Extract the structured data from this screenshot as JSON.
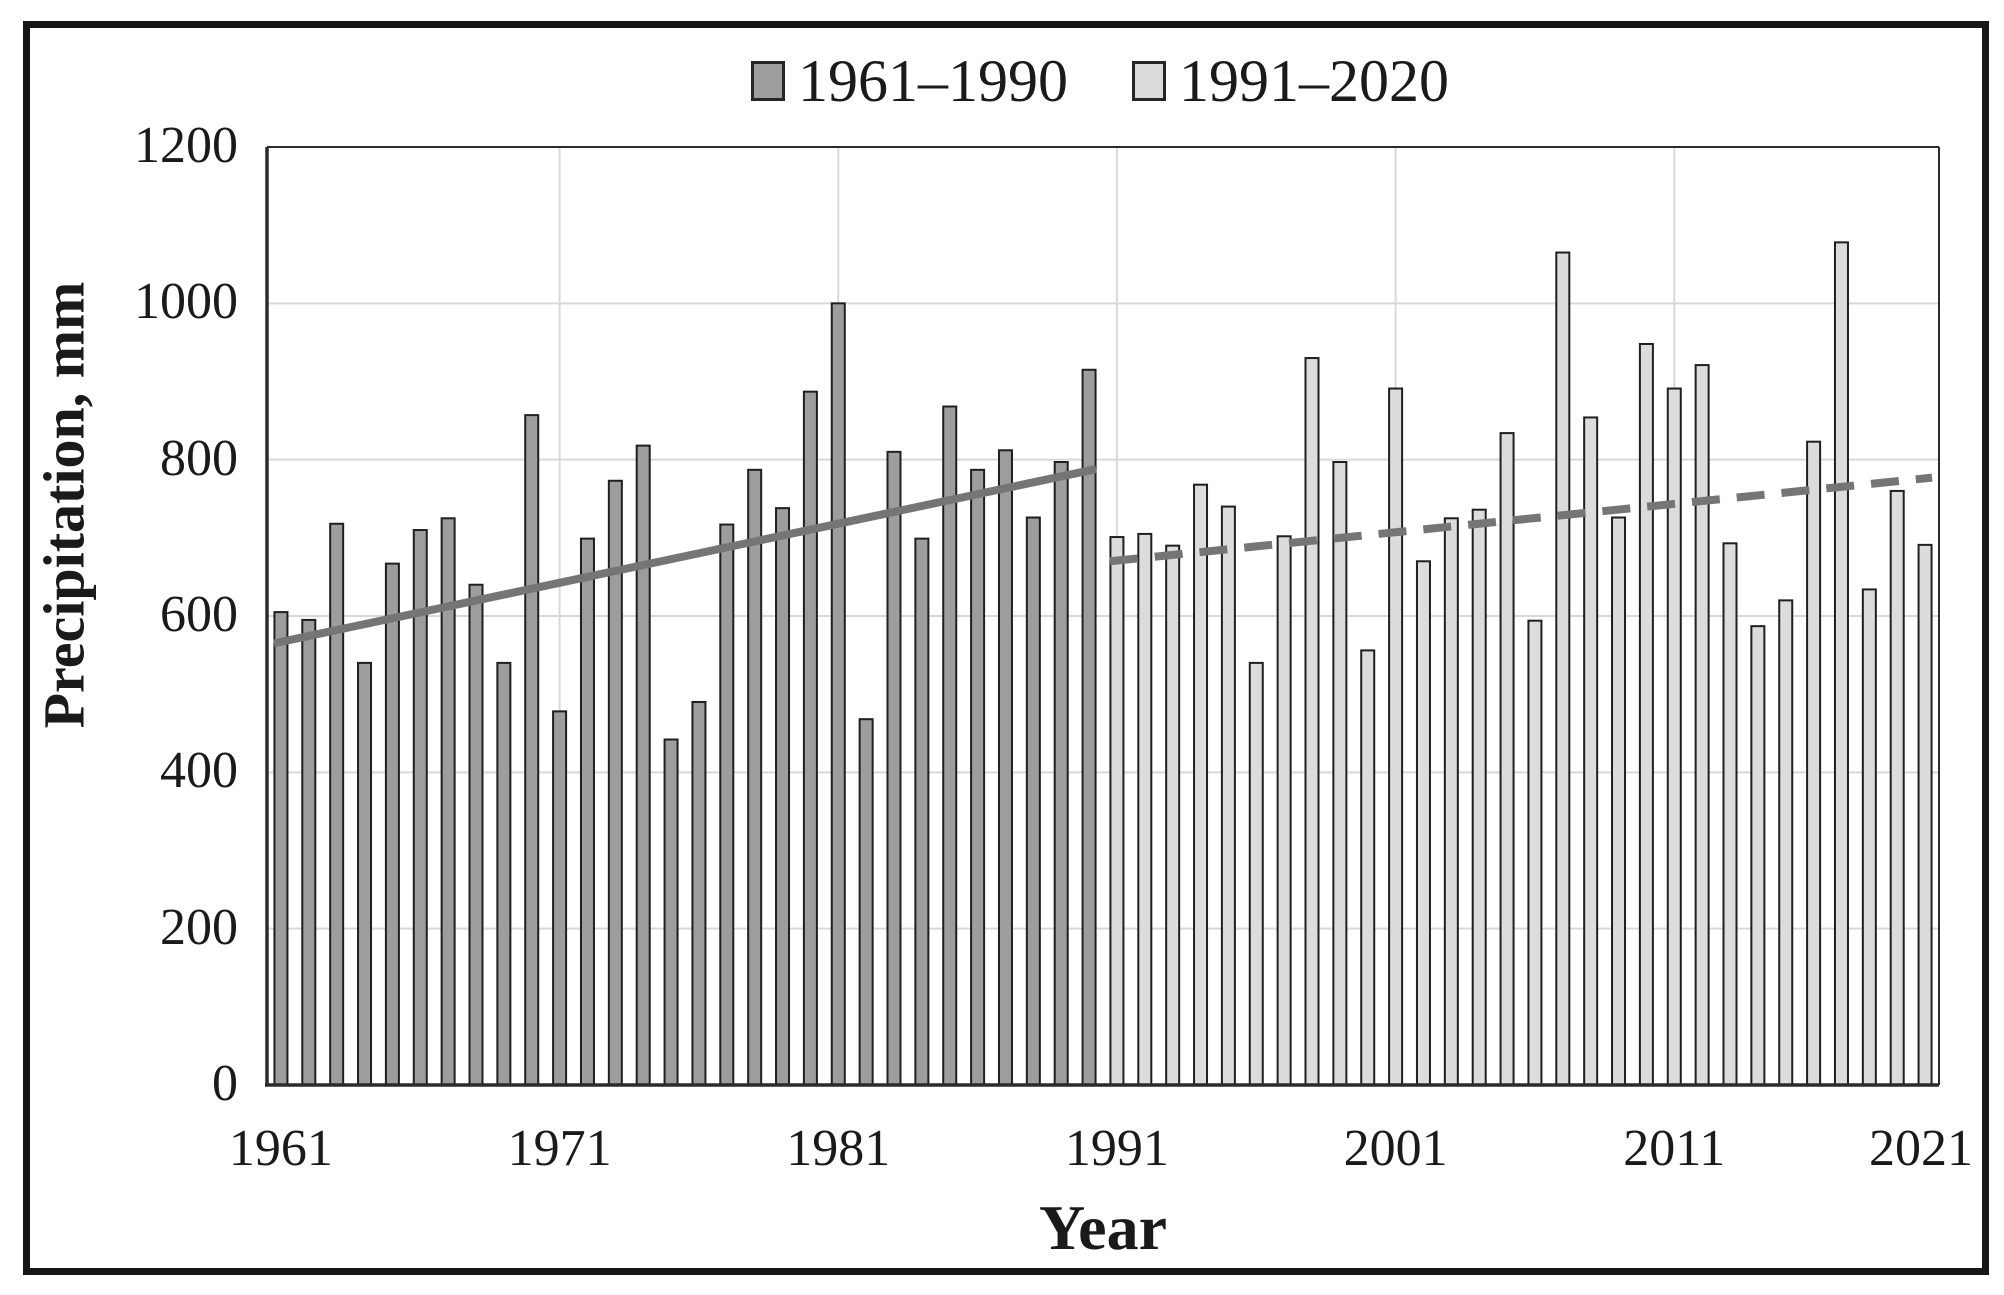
{
  "figure": {
    "background": "#ffffff",
    "frame_color": "#161616"
  },
  "legend": {
    "items": [
      {
        "label": "1961–1990",
        "swatch_color": "#9d9d9d"
      },
      {
        "label": "1991–2020",
        "swatch_color": "#dcdcdc"
      }
    ]
  },
  "chart_data": {
    "type": "bar",
    "title": "",
    "xlabel": "Year",
    "ylabel": "Precipitation, mm",
    "ylim": [
      0,
      1200
    ],
    "yticks": [
      0,
      200,
      400,
      600,
      800,
      1000,
      1200
    ],
    "xticks": [
      1961,
      1971,
      1981,
      1991,
      2001,
      2011,
      2021
    ],
    "x_gridlines": [
      1971,
      1981,
      1991,
      2001,
      2011
    ],
    "grid": true,
    "legend_position": "top-center",
    "bar_outline": "#1f1f1f",
    "gridline_color": "#d9d9d9",
    "axis_color": "#1a1a1a",
    "series": [
      {
        "name": "1961–1990",
        "color": "#9d9d9d",
        "years": [
          1961,
          1962,
          1963,
          1964,
          1965,
          1966,
          1967,
          1968,
          1969,
          1970,
          1971,
          1972,
          1973,
          1974,
          1975,
          1976,
          1977,
          1978,
          1979,
          1980,
          1981,
          1982,
          1983,
          1984,
          1985,
          1986,
          1987,
          1988,
          1989,
          1990
        ],
        "values": [
          605,
          595,
          718,
          540,
          667,
          710,
          725,
          640,
          540,
          857,
          478,
          699,
          773,
          818,
          442,
          490,
          717,
          787,
          738,
          887,
          1000,
          468,
          810,
          699,
          868,
          787,
          812,
          726,
          797,
          915
        ]
      },
      {
        "name": "1991–2020",
        "color": "#dcdcdc",
        "years": [
          1991,
          1992,
          1993,
          1994,
          1995,
          1996,
          1997,
          1998,
          1999,
          2000,
          2001,
          2002,
          2003,
          2004,
          2005,
          2006,
          2007,
          2008,
          2009,
          2010,
          2011,
          2012,
          2013,
          2014,
          2015,
          2016,
          2017,
          2018,
          2019,
          2020
        ],
        "values": [
          701,
          705,
          690,
          768,
          740,
          540,
          702,
          930,
          797,
          556,
          891,
          670,
          725,
          736,
          834,
          594,
          1065,
          854,
          726,
          948,
          891,
          921,
          693,
          587,
          620,
          823,
          1078,
          634,
          760,
          691
        ]
      }
    ],
    "trendlines": [
      {
        "name": "1961–1990 trend",
        "style": "solid",
        "color": "#757575",
        "x_start": 1961,
        "y_start": 565,
        "x_end": 1990,
        "y_end": 788
      },
      {
        "name": "1991–2020 trend",
        "style": "dashed",
        "color": "#757575",
        "x_start": 1991,
        "y_start": 670,
        "x_end": 2020,
        "y_end": 777
      }
    ]
  }
}
